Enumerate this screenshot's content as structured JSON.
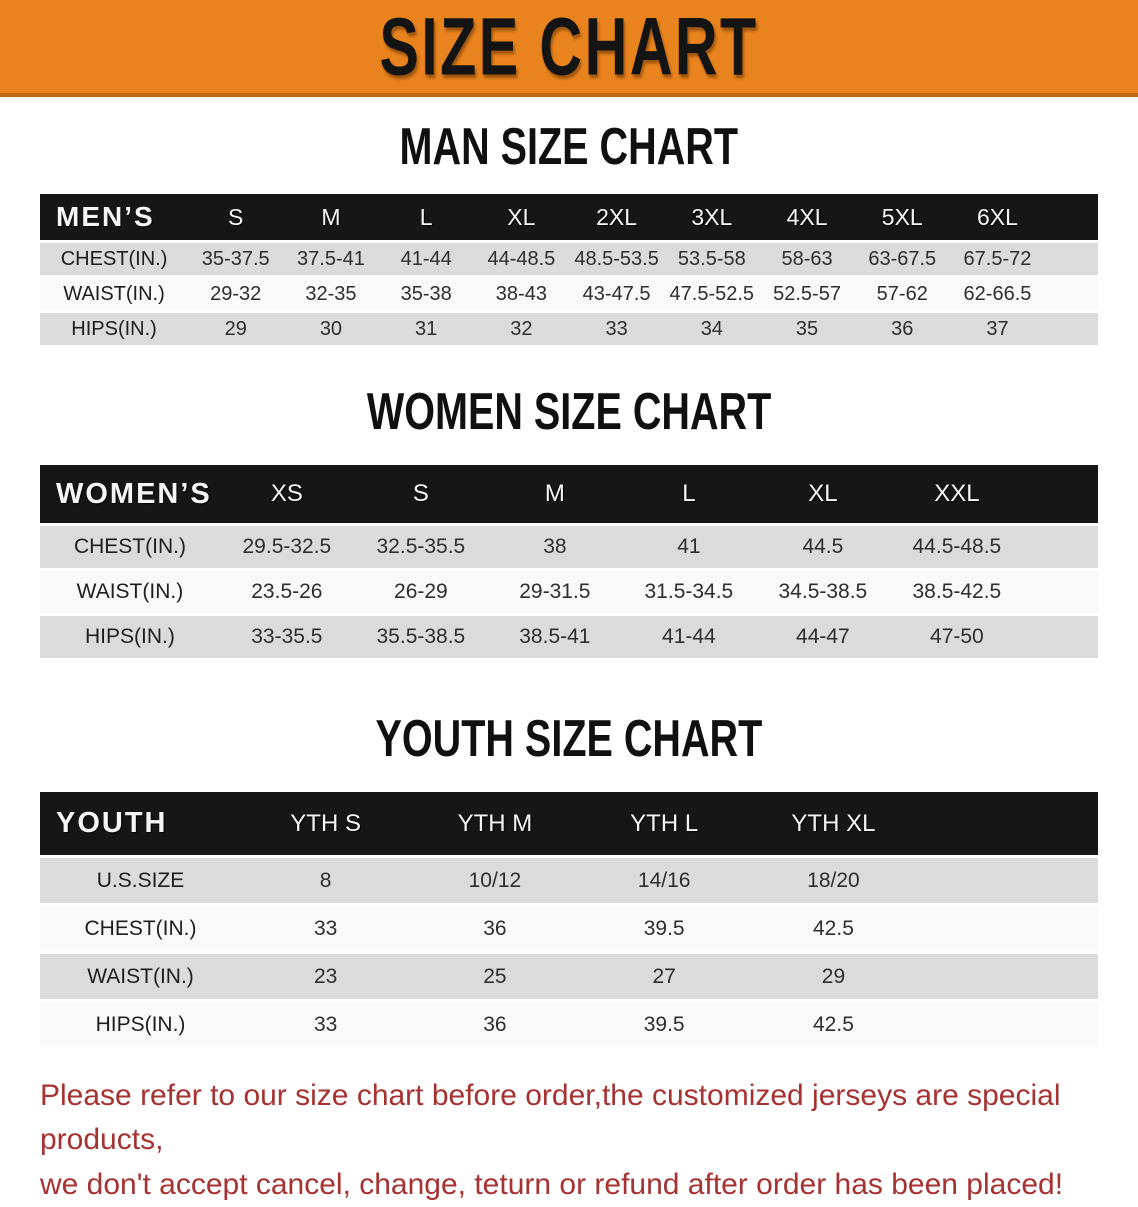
{
  "banner": {
    "title": "SIZE CHART"
  },
  "sections": [
    {
      "heading": "MAN SIZE CHART",
      "table": {
        "corner": "MEN’S",
        "columns": [
          "S",
          "M",
          "L",
          "XL",
          "2XL",
          "3XL",
          "4XL",
          "5XL",
          "6XL"
        ],
        "rows": [
          {
            "label": "CHEST(IN.)",
            "values": [
              "35-37.5",
              "37.5-41",
              "41-44",
              "44-48.5",
              "48.5-53.5",
              "53.5-58",
              "58-63",
              "63-67.5",
              "67.5-72"
            ]
          },
          {
            "label": "WAIST(IN.)",
            "values": [
              "29-32",
              "32-35",
              "35-38",
              "38-43",
              "43-47.5",
              "47.5-52.5",
              "52.5-57",
              "57-62",
              "62-66.5"
            ]
          },
          {
            "label": "HIPS(IN.)",
            "values": [
              "29",
              "30",
              "31",
              "32",
              "33",
              "34",
              "35",
              "36",
              "37"
            ]
          }
        ]
      }
    },
    {
      "heading": "WOMEN SIZE CHART",
      "table": {
        "corner": "WOMEN’S",
        "columns": [
          "XS",
          "S",
          "M",
          "L",
          "XL",
          "XXL"
        ],
        "rows": [
          {
            "label": "CHEST(IN.)",
            "values": [
              "29.5-32.5",
              "32.5-35.5",
              "38",
              "41",
              "44.5",
              "44.5-48.5"
            ]
          },
          {
            "label": "WAIST(IN.)",
            "values": [
              "23.5-26",
              "26-29",
              "29-31.5",
              "31.5-34.5",
              "34.5-38.5",
              "38.5-42.5"
            ]
          },
          {
            "label": "HIPS(IN.)",
            "values": [
              "33-35.5",
              "35.5-38.5",
              "38.5-41",
              "41-44",
              "44-47",
              "47-50"
            ]
          }
        ]
      }
    },
    {
      "heading": "YOUTH SIZE CHART",
      "table": {
        "corner": "YOUTH",
        "columns": [
          "YTH S",
          "YTH M",
          "YTH L",
          "YTH XL"
        ],
        "rows": [
          {
            "label": "U.S.SIZE",
            "values": [
              "8",
              "10/12",
              "14/16",
              "18/20"
            ]
          },
          {
            "label": "CHEST(IN.)",
            "values": [
              "33",
              "36",
              "39.5",
              "42.5"
            ]
          },
          {
            "label": "WAIST(IN.)",
            "values": [
              "23",
              "25",
              "27",
              "29"
            ]
          },
          {
            "label": "HIPS(IN.)",
            "values": [
              "33",
              "36",
              "39.5",
              "42.5"
            ]
          }
        ]
      }
    }
  ],
  "footer": {
    "line1": "Please refer to our size chart before order,the customized jerseys are special products,",
    "line2": "we don't accept cancel, change, teturn or refund after order has been placed!"
  },
  "colors": {
    "banner_bg": "#E8831D",
    "table_header_bg": "#161616",
    "stripe_gray": "#DBDBDB",
    "footer_text": "#A63232"
  }
}
